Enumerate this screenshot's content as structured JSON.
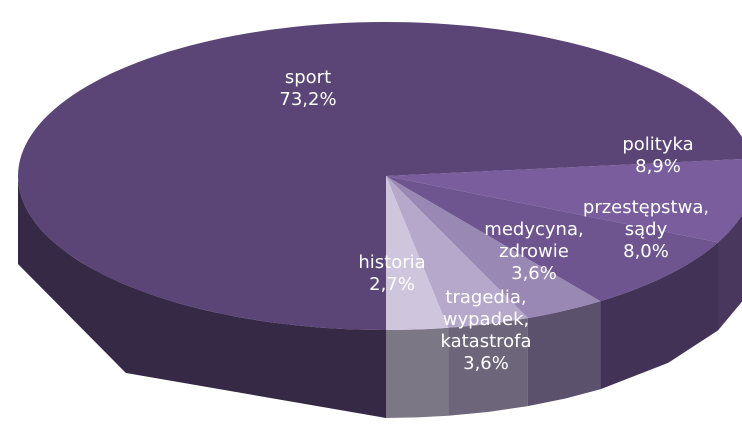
{
  "chart_data": {
    "type": "pie",
    "categories": [
      "sport",
      "polityka",
      "przestępstwa, sądy",
      "medycyna, zdrowie",
      "tragedia, wypadek, katastrofa",
      "historia"
    ],
    "values": [
      73.2,
      8.9,
      8.0,
      3.6,
      3.6,
      2.7
    ],
    "value_labels": [
      "73,2%",
      "8,9%",
      "8,0%",
      "3,6%",
      "3,6%",
      "2,7%"
    ],
    "colors": [
      "#5a4576",
      "#7a5d9c",
      "#6e5590",
      "#9a88b4",
      "#b6a8cb",
      "#cfc6de"
    ]
  }
}
